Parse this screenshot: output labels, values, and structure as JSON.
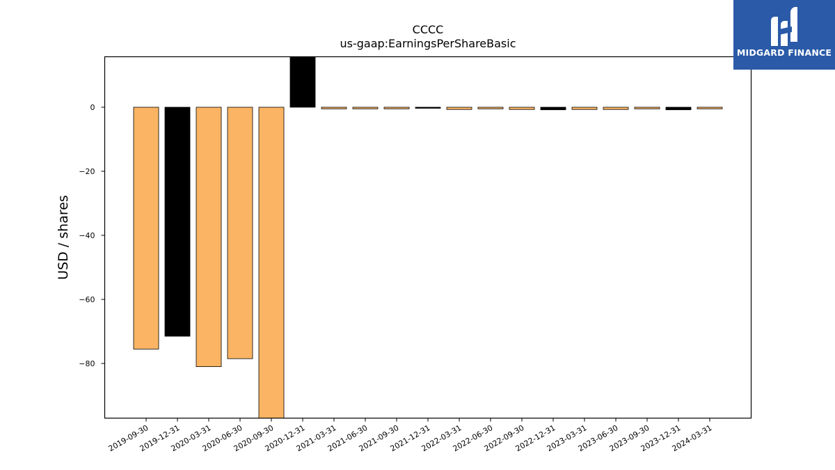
{
  "chart_data": {
    "type": "bar",
    "title": "CCCC",
    "subtitle": "us-gaap:EarningsPerShareBasic",
    "ylabel": "USD / shares",
    "xlabel": "",
    "ylim": [
      -97,
      16
    ],
    "yticks": [
      0,
      -20,
      -40,
      -60,
      -80
    ],
    "ytick_labels": [
      "0",
      "−20",
      "−40",
      "−60",
      "−80"
    ],
    "categories": [
      "2019-09-30",
      "2019-12-31",
      "2020-03-31",
      "2020-06-30",
      "2020-09-30",
      "2020-12-31",
      "2021-03-31",
      "2021-06-30",
      "2021-09-30",
      "2021-12-31",
      "2022-03-31",
      "2022-06-30",
      "2022-09-30",
      "2022-12-31",
      "2023-03-31",
      "2023-06-30",
      "2023-09-30",
      "2023-12-31",
      "2024-03-31"
    ],
    "values": [
      -75.5,
      -71.5,
      -81,
      -78.5,
      -100,
      16,
      -0.5,
      -0.5,
      -0.5,
      -0.3,
      -0.7,
      -0.5,
      -0.7,
      -0.8,
      -0.7,
      -0.7,
      -0.5,
      -0.8,
      -0.5
    ],
    "bar_colors": [
      "#fbb463",
      "#000000",
      "#fbb463",
      "#fbb463",
      "#fbb463",
      "#000000",
      "#fbb463",
      "#fbb463",
      "#fbb463",
      "#000000",
      "#fbb463",
      "#fbb463",
      "#fbb463",
      "#000000",
      "#fbb463",
      "#fbb463",
      "#fbb463",
      "#000000",
      "#fbb463"
    ],
    "grid": false
  },
  "logo": {
    "text": "MIDGARD FINANCE",
    "background": "#2a5aa8"
  }
}
